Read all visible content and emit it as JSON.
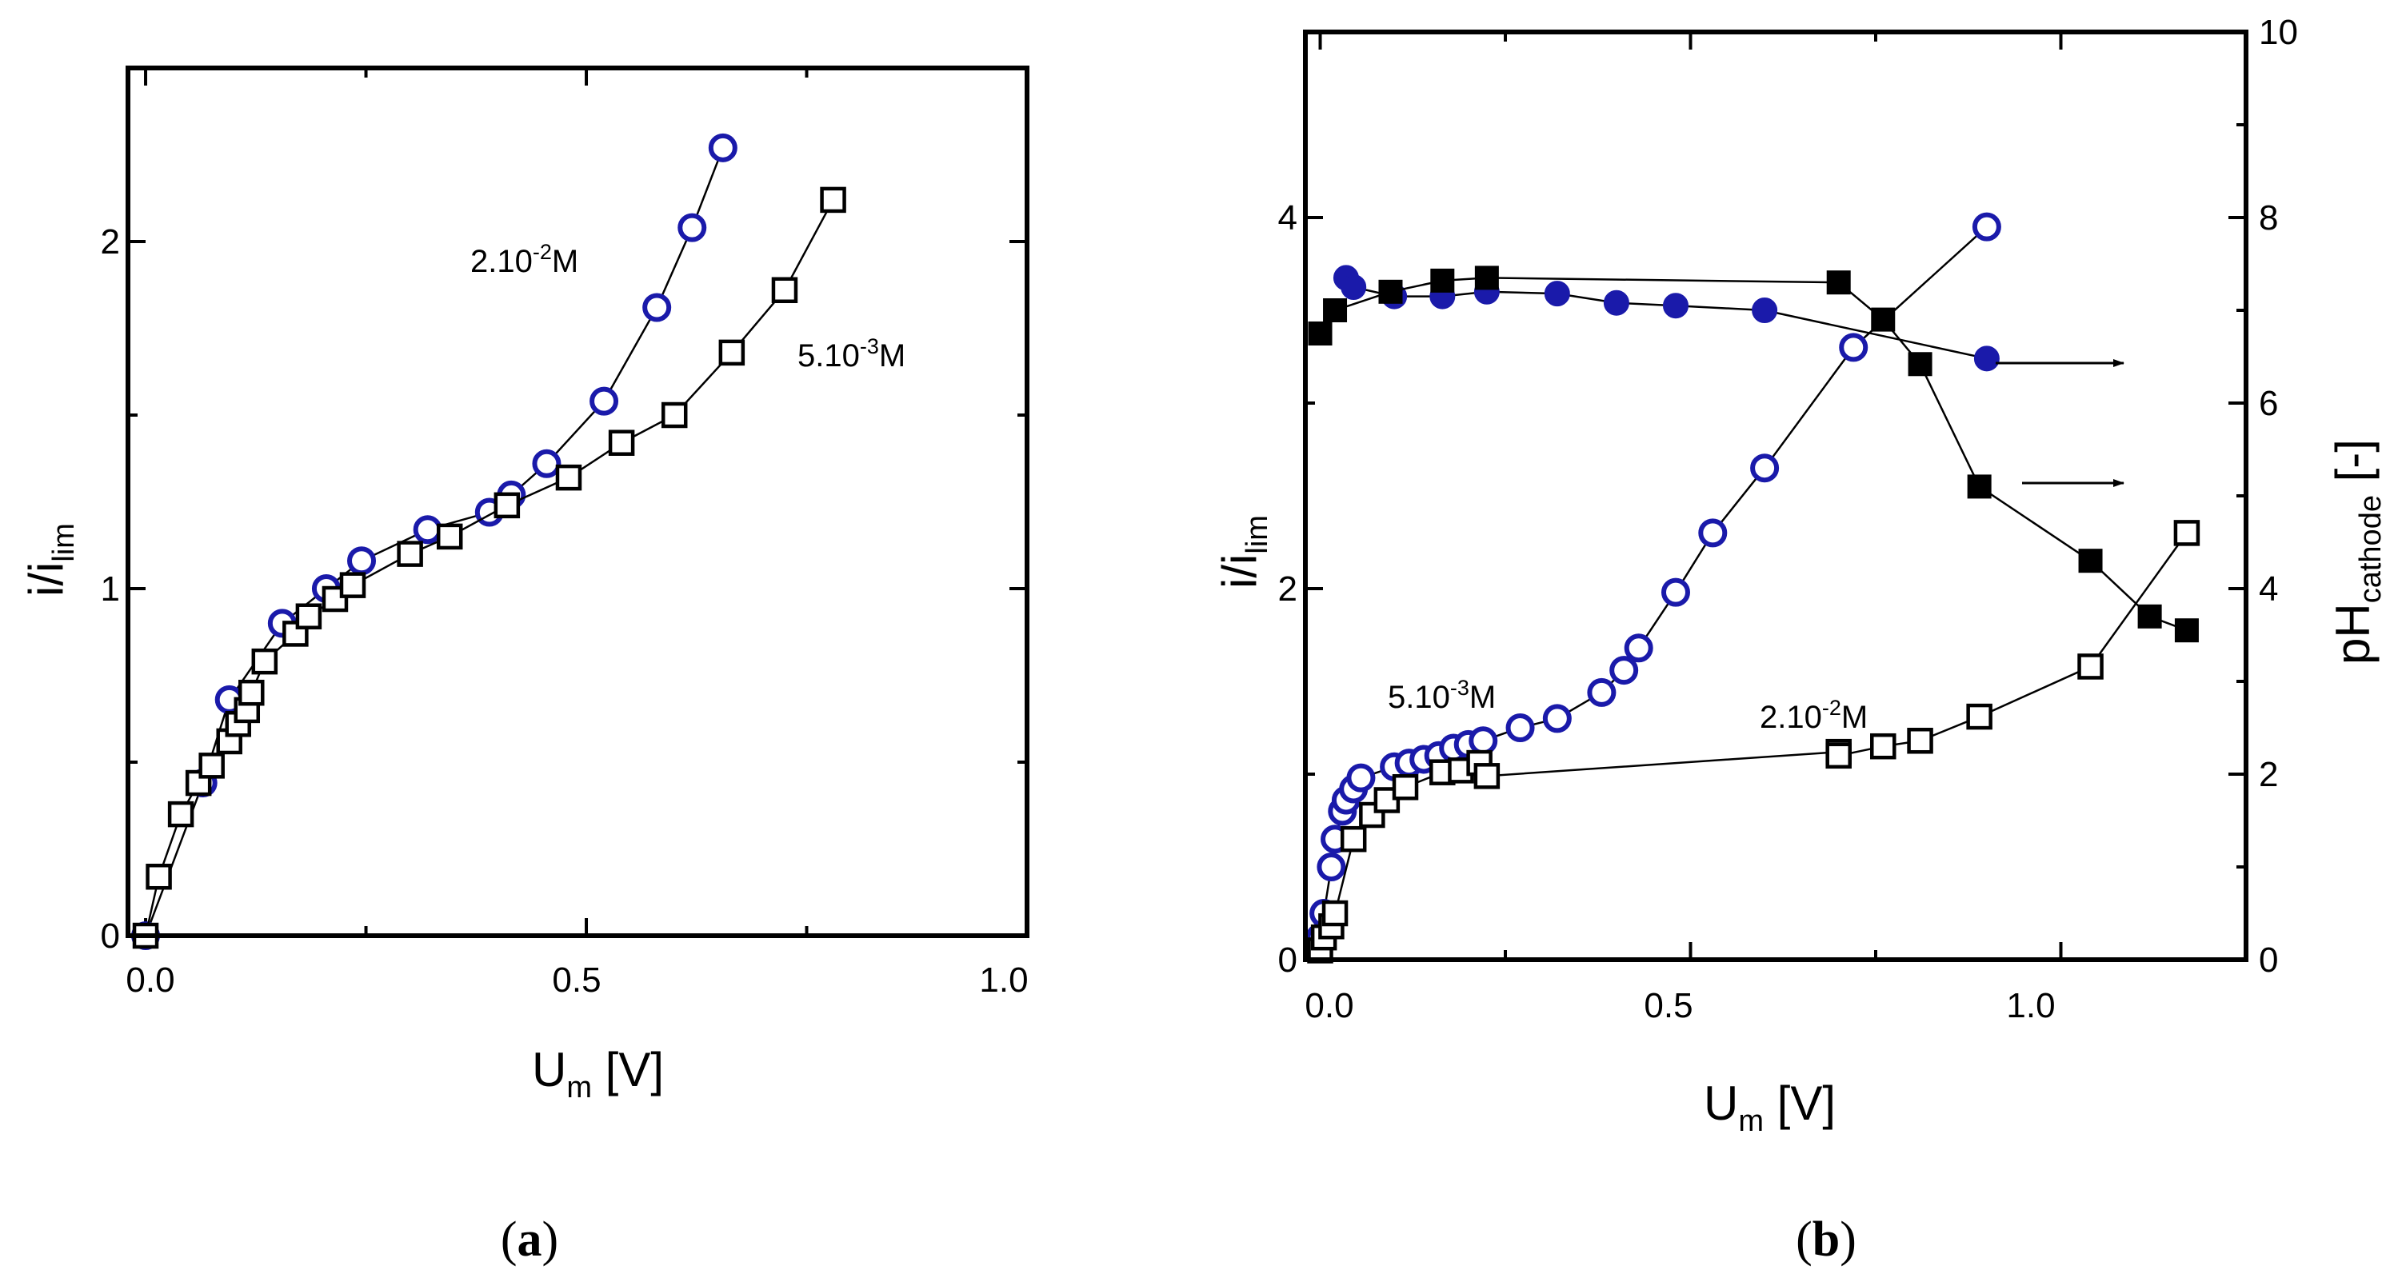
{
  "chart_data": [
    {
      "type": "scatter",
      "panel_label": "a",
      "xlabel": {
        "main": "U",
        "sub": "m",
        "unit": " [V]"
      },
      "ylabel": {
        "main": "i/i",
        "sub": "lim"
      },
      "xlim": [
        -0.02,
        1.0
      ],
      "ylim": [
        0,
        2.5
      ],
      "xticks": [
        0.0,
        0.5,
        1.0
      ],
      "xtick_labels": [
        "0.0",
        "0.5",
        "1.0"
      ],
      "yticks": [
        0,
        1,
        2
      ],
      "ytick_labels": [
        "0",
        "1",
        "2"
      ],
      "grid": false,
      "series": [
        {
          "marker": "open-circle",
          "color": "#1a1aaa",
          "x": [
            0.0,
            0.065,
            0.095,
            0.155,
            0.205,
            0.245,
            0.32,
            0.39,
            0.415,
            0.455,
            0.52,
            0.58,
            0.62,
            0.655
          ],
          "y": [
            0.0,
            0.44,
            0.68,
            0.9,
            1.0,
            1.08,
            1.17,
            1.22,
            1.27,
            1.36,
            1.54,
            1.81,
            2.04,
            2.27
          ]
        },
        {
          "marker": "open-square",
          "color": "#000000",
          "x": [
            0.0,
            0.015,
            0.04,
            0.06,
            0.075,
            0.095,
            0.105,
            0.115,
            0.12,
            0.135,
            0.17,
            0.185,
            0.215,
            0.235,
            0.3,
            0.345,
            0.41,
            0.48,
            0.54,
            0.6,
            0.665,
            0.725,
            0.78
          ],
          "y": [
            0.0,
            0.17,
            0.35,
            0.44,
            0.49,
            0.56,
            0.61,
            0.65,
            0.7,
            0.79,
            0.87,
            0.92,
            0.97,
            1.01,
            1.1,
            1.15,
            1.24,
            1.32,
            1.42,
            1.5,
            1.68,
            1.86,
            2.12
          ]
        }
      ],
      "annotations": [
        {
          "base": "2.10",
          "sup": "-2",
          "tail": "M"
        },
        {
          "base": "5.10",
          "sup": "-3",
          "tail": "M"
        }
      ]
    },
    {
      "type": "scatter",
      "panel_label": "b",
      "xlabel": {
        "main": "U",
        "sub": "m",
        "unit": " [V]"
      },
      "ylabel": {
        "main": "i/i",
        "sub": "lim"
      },
      "y2label": {
        "main": "pH",
        "sub": "cathode",
        "unit": " [-]"
      },
      "xlim": [
        -0.02,
        1.25
      ],
      "ylim": [
        0,
        5
      ],
      "y2lim": [
        0,
        10
      ],
      "xticks": [
        0.0,
        0.5,
        1.0
      ],
      "xtick_labels": [
        "0.0",
        "0.5",
        "1.0"
      ],
      "yticks": [
        0,
        2,
        4
      ],
      "ytick_labels": [
        "0",
        "2",
        "4"
      ],
      "y2ticks": [
        0,
        2,
        4,
        6,
        8,
        10
      ],
      "y2tick_labels": [
        "0",
        "2",
        "4",
        "6",
        "8",
        "10"
      ],
      "grid": false,
      "series": [
        {
          "marker": "open-circle",
          "color": "#1a1aaa",
          "axis": "left",
          "x": [
            0.0,
            0.005,
            0.015,
            0.02,
            0.03,
            0.035,
            0.045,
            0.055,
            0.1,
            0.12,
            0.14,
            0.16,
            0.18,
            0.2,
            0.22,
            0.27,
            0.32,
            0.38,
            0.41,
            0.43,
            0.48,
            0.53,
            0.6,
            0.72,
            0.9
          ],
          "y": [
            0.12,
            0.25,
            0.5,
            0.65,
            0.8,
            0.86,
            0.92,
            0.98,
            1.04,
            1.06,
            1.08,
            1.1,
            1.14,
            1.16,
            1.18,
            1.25,
            1.3,
            1.44,
            1.56,
            1.68,
            1.98,
            2.3,
            2.65,
            3.3,
            3.95
          ]
        },
        {
          "marker": "open-square",
          "color": "#000000",
          "axis": "left",
          "x": [
            0.0,
            0.005,
            0.015,
            0.02,
            0.045,
            0.07,
            0.09,
            0.115,
            0.165,
            0.19,
            0.215,
            0.225,
            0.7,
            0.7,
            0.76,
            0.81,
            0.89,
            1.04,
            1.17
          ],
          "y": [
            0.05,
            0.12,
            0.18,
            0.25,
            0.65,
            0.78,
            0.86,
            0.93,
            1.01,
            1.02,
            1.06,
            0.99,
            1.12,
            1.1,
            1.15,
            1.18,
            1.31,
            1.58,
            2.3
          ]
        },
        {
          "marker": "filled-circle",
          "color": "#1a1aaa",
          "axis": "right",
          "x": [
            0.035,
            0.045,
            0.1,
            0.165,
            0.225,
            0.32,
            0.4,
            0.48,
            0.6,
            0.9
          ],
          "y": [
            7.35,
            7.25,
            7.15,
            7.15,
            7.2,
            7.18,
            7.08,
            7.05,
            7.0,
            6.48
          ]
        },
        {
          "marker": "filled-square",
          "color": "#000000",
          "axis": "right",
          "x": [
            0.0,
            0.02,
            0.095,
            0.165,
            0.225,
            0.7,
            0.76,
            0.81,
            0.89,
            1.04,
            1.12,
            1.17
          ],
          "y": [
            6.75,
            7.0,
            7.2,
            7.32,
            7.35,
            7.3,
            6.9,
            6.42,
            5.1,
            4.3,
            3.7,
            3.55
          ]
        }
      ],
      "annotations": [
        {
          "base": "5.10",
          "sup": "-3",
          "tail": "M"
        },
        {
          "base": "2.10",
          "sup": "-2",
          "tail": "M"
        }
      ]
    }
  ]
}
